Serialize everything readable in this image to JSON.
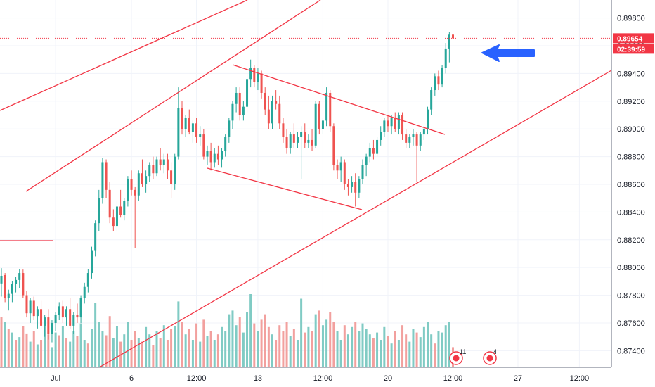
{
  "chart_data": {
    "type": "candlestick",
    "y_axis": {
      "side": "right",
      "ylim": [
        0.8728,
        0.8993
      ],
      "ticks": [
        "0.89800",
        "0.89600",
        "0.89400",
        "0.89200",
        "0.89000",
        "0.88800",
        "0.88600",
        "0.88400",
        "0.88200",
        "0.88000",
        "0.87800",
        "0.87600",
        "0.87400"
      ]
    },
    "x_axis": {
      "tick_labels": [
        "Jul",
        "6",
        "12:00",
        "13",
        "12:00",
        "20",
        "12:00",
        "27",
        "12:00"
      ]
    },
    "last_price": {
      "label": "0.89654",
      "countdown": "02:39:59",
      "value": 0.89654,
      "color": "#f23645"
    },
    "colors": {
      "up": "#26a69a",
      "down": "#ef5350",
      "vol_up": "#80cbc4",
      "vol_down": "#f2a09e",
      "trendline": "#f23645",
      "arrow": "#2962ff"
    },
    "candles": [
      [
        0.87885,
        0.87995,
        0.8779,
        0.8794
      ],
      [
        0.87945,
        0.8796,
        0.8775,
        0.8778
      ],
      [
        0.8778,
        0.8784,
        0.8769,
        0.8781
      ],
      [
        0.8781,
        0.879,
        0.8775,
        0.8788
      ],
      [
        0.8788,
        0.8793,
        0.8782,
        0.8791
      ],
      [
        0.8791,
        0.8799,
        0.8785,
        0.8796
      ],
      [
        0.8796,
        0.87985,
        0.8778,
        0.878
      ],
      [
        0.878,
        0.8783,
        0.8764,
        0.8767
      ],
      [
        0.8767,
        0.8778,
        0.876,
        0.8776
      ],
      [
        0.8776,
        0.8779,
        0.8762,
        0.8765
      ],
      [
        0.8765,
        0.8772,
        0.8756,
        0.877
      ],
      [
        0.877,
        0.8776,
        0.8756,
        0.8758
      ],
      [
        0.8758,
        0.8766,
        0.875,
        0.8764
      ],
      [
        0.8764,
        0.877,
        0.8748,
        0.8752
      ],
      [
        0.8752,
        0.8762,
        0.8746,
        0.876
      ],
      [
        0.876,
        0.8768,
        0.8754,
        0.8766
      ],
      [
        0.8766,
        0.8775,
        0.8762,
        0.8772
      ],
      [
        0.8772,
        0.8776,
        0.876,
        0.8764
      ],
      [
        0.8764,
        0.8772,
        0.8758,
        0.877
      ],
      [
        0.877,
        0.8778,
        0.8756,
        0.8758
      ],
      [
        0.8758,
        0.8768,
        0.8752,
        0.8766
      ],
      [
        0.8766,
        0.8774,
        0.876,
        0.8764
      ],
      [
        0.8764,
        0.878,
        0.876,
        0.8778
      ],
      [
        0.8778,
        0.8789,
        0.8774,
        0.8786
      ],
      [
        0.8786,
        0.8799,
        0.8782,
        0.8796
      ],
      [
        0.8796,
        0.8815,
        0.8792,
        0.8812
      ],
      [
        0.8812,
        0.8834,
        0.8808,
        0.8832
      ],
      [
        0.8832,
        0.8856,
        0.8826,
        0.885
      ],
      [
        0.885,
        0.8879,
        0.8846,
        0.8876
      ],
      [
        0.8876,
        0.8878,
        0.885,
        0.8856
      ],
      [
        0.8856,
        0.8862,
        0.8832,
        0.8836
      ],
      [
        0.8836,
        0.8842,
        0.8826,
        0.883
      ],
      [
        0.883,
        0.8848,
        0.8826,
        0.8844
      ],
      [
        0.8844,
        0.8856,
        0.8836,
        0.8838
      ],
      [
        0.8838,
        0.885,
        0.8834,
        0.8848
      ],
      [
        0.8848,
        0.8866,
        0.8844,
        0.8864
      ],
      [
        0.8864,
        0.887,
        0.8852,
        0.8856
      ],
      [
        0.8856,
        0.8858,
        0.8814,
        0.8852
      ],
      [
        0.8852,
        0.887,
        0.8848,
        0.8868
      ],
      [
        0.8868,
        0.8878,
        0.8858,
        0.886
      ],
      [
        0.886,
        0.887,
        0.8854,
        0.8866
      ],
      [
        0.8866,
        0.8876,
        0.8862,
        0.8874
      ],
      [
        0.8874,
        0.888,
        0.8864,
        0.8868
      ],
      [
        0.8868,
        0.888,
        0.8866,
        0.8878
      ],
      [
        0.8878,
        0.8886,
        0.887,
        0.8874
      ],
      [
        0.8874,
        0.8882,
        0.8868,
        0.8878
      ],
      [
        0.8878,
        0.8882,
        0.8864,
        0.887
      ],
      [
        0.887,
        0.8876,
        0.885,
        0.886
      ],
      [
        0.886,
        0.8882,
        0.8856,
        0.888
      ],
      [
        0.888,
        0.893,
        0.8878,
        0.8915
      ],
      [
        0.8915,
        0.892,
        0.8896,
        0.89
      ],
      [
        0.89,
        0.891,
        0.8894,
        0.8908
      ],
      [
        0.8908,
        0.8914,
        0.8896,
        0.8898
      ],
      [
        0.8898,
        0.8906,
        0.889,
        0.8904
      ],
      [
        0.8904,
        0.8908,
        0.889,
        0.8894
      ],
      [
        0.8894,
        0.8902,
        0.8888,
        0.8896
      ],
      [
        0.8896,
        0.89,
        0.8878,
        0.888
      ],
      [
        0.888,
        0.8888,
        0.8874,
        0.8884
      ],
      [
        0.8884,
        0.889,
        0.887,
        0.8876
      ],
      [
        0.8876,
        0.8886,
        0.8872,
        0.8882
      ],
      [
        0.8882,
        0.8888,
        0.8874,
        0.8878
      ],
      [
        0.8878,
        0.8886,
        0.8872,
        0.8884
      ],
      [
        0.8884,
        0.8896,
        0.888,
        0.8894
      ],
      [
        0.8894,
        0.8908,
        0.889,
        0.8906
      ],
      [
        0.8906,
        0.892,
        0.89,
        0.8918
      ],
      [
        0.8918,
        0.893,
        0.8912,
        0.8926
      ],
      [
        0.8926,
        0.893,
        0.8906,
        0.891
      ],
      [
        0.891,
        0.892,
        0.8906,
        0.8916
      ],
      [
        0.8916,
        0.894,
        0.8912,
        0.8936
      ],
      [
        0.8936,
        0.895,
        0.893,
        0.8944
      ],
      [
        0.8944,
        0.8946,
        0.893,
        0.8934
      ],
      [
        0.8934,
        0.8944,
        0.8928,
        0.894
      ],
      [
        0.894,
        0.8942,
        0.8922,
        0.8926
      ],
      [
        0.8926,
        0.893,
        0.891,
        0.8914
      ],
      [
        0.8914,
        0.8924,
        0.89,
        0.8904
      ],
      [
        0.8904,
        0.8924,
        0.89,
        0.892
      ],
      [
        0.892,
        0.8928,
        0.8914,
        0.8918
      ],
      [
        0.8918,
        0.8924,
        0.89,
        0.8904
      ],
      [
        0.8904,
        0.8908,
        0.889,
        0.8894
      ],
      [
        0.8894,
        0.89,
        0.8882,
        0.8886
      ],
      [
        0.8886,
        0.8898,
        0.8882,
        0.8896
      ],
      [
        0.8896,
        0.8904,
        0.8886,
        0.889
      ],
      [
        0.889,
        0.8898,
        0.8886,
        0.8894
      ],
      [
        0.8894,
        0.8902,
        0.8864,
        0.8898
      ],
      [
        0.8898,
        0.8904,
        0.8886,
        0.889
      ],
      [
        0.889,
        0.8896,
        0.8886,
        0.8892
      ],
      [
        0.8892,
        0.89,
        0.8884,
        0.8888
      ],
      [
        0.8888,
        0.892,
        0.8886,
        0.8918
      ],
      [
        0.8918,
        0.892,
        0.8896,
        0.89
      ],
      [
        0.89,
        0.8908,
        0.8896,
        0.8906
      ],
      [
        0.8906,
        0.893,
        0.8902,
        0.8926
      ],
      [
        0.8926,
        0.8928,
        0.8898,
        0.8902
      ],
      [
        0.8902,
        0.8904,
        0.887,
        0.8874
      ],
      [
        0.8874,
        0.8878,
        0.8864,
        0.887
      ],
      [
        0.887,
        0.888,
        0.8862,
        0.8876
      ],
      [
        0.8876,
        0.8878,
        0.8856,
        0.886
      ],
      [
        0.886,
        0.8864,
        0.8852,
        0.8858
      ],
      [
        0.8858,
        0.8866,
        0.8854,
        0.8862
      ],
      [
        0.8862,
        0.8868,
        0.8844,
        0.8854
      ],
      [
        0.8854,
        0.8866,
        0.885,
        0.8864
      ],
      [
        0.8864,
        0.8878,
        0.886,
        0.8874
      ],
      [
        0.8874,
        0.8882,
        0.8866,
        0.888
      ],
      [
        0.888,
        0.889,
        0.8876,
        0.8886
      ],
      [
        0.8886,
        0.8892,
        0.8878,
        0.8882
      ],
      [
        0.8882,
        0.8894,
        0.888,
        0.8892
      ],
      [
        0.8892,
        0.8902,
        0.8888,
        0.8898
      ],
      [
        0.8898,
        0.8908,
        0.8894,
        0.8906
      ],
      [
        0.8906,
        0.891,
        0.8898,
        0.8902
      ],
      [
        0.8902,
        0.891,
        0.8896,
        0.8908
      ],
      [
        0.8908,
        0.8912,
        0.8898,
        0.89
      ],
      [
        0.89,
        0.8912,
        0.8896,
        0.891
      ],
      [
        0.891,
        0.8912,
        0.8892,
        0.8896
      ],
      [
        0.8896,
        0.89,
        0.8886,
        0.889
      ],
      [
        0.889,
        0.8896,
        0.8886,
        0.8894
      ],
      [
        0.8894,
        0.89,
        0.8888,
        0.8896
      ],
      [
        0.8896,
        0.8898,
        0.8862,
        0.8888
      ],
      [
        0.8888,
        0.8898,
        0.8884,
        0.8896
      ],
      [
        0.8896,
        0.8902,
        0.8892,
        0.89
      ],
      [
        0.89,
        0.8916,
        0.8896,
        0.8914
      ],
      [
        0.8914,
        0.893,
        0.891,
        0.8928
      ],
      [
        0.8928,
        0.894,
        0.8924,
        0.8938
      ],
      [
        0.8938,
        0.8942,
        0.8928,
        0.8932
      ],
      [
        0.8932,
        0.8946,
        0.893,
        0.8944
      ],
      [
        0.8944,
        0.8962,
        0.894,
        0.8958
      ],
      [
        0.8958,
        0.897,
        0.8948,
        0.8968
      ],
      [
        0.8968,
        0.8971,
        0.896,
        0.89654
      ]
    ],
    "volumes": [
      [
        0.55,
        0
      ],
      [
        0.5,
        1
      ],
      [
        0.42,
        0
      ],
      [
        0.38,
        1
      ],
      [
        0.3,
        0
      ],
      [
        0.33,
        1
      ],
      [
        0.45,
        0
      ],
      [
        0.37,
        0
      ],
      [
        0.28,
        1
      ],
      [
        0.4,
        0
      ],
      [
        0.25,
        1
      ],
      [
        0.3,
        0
      ],
      [
        0.46,
        1
      ],
      [
        0.36,
        0
      ],
      [
        0.22,
        1
      ],
      [
        0.38,
        1
      ],
      [
        0.35,
        0
      ],
      [
        0.45,
        1
      ],
      [
        0.32,
        0
      ],
      [
        0.28,
        1
      ],
      [
        0.4,
        1
      ],
      [
        0.34,
        0
      ],
      [
        0.48,
        1
      ],
      [
        0.3,
        1
      ],
      [
        0.26,
        0
      ],
      [
        0.42,
        1
      ],
      [
        0.7,
        1
      ],
      [
        0.5,
        1
      ],
      [
        0.4,
        1
      ],
      [
        0.35,
        0
      ],
      [
        0.56,
        0
      ],
      [
        0.32,
        1
      ],
      [
        0.45,
        1
      ],
      [
        0.28,
        0
      ],
      [
        0.36,
        1
      ],
      [
        0.5,
        1
      ],
      [
        0.3,
        0
      ],
      [
        0.4,
        0
      ],
      [
        0.32,
        1
      ],
      [
        0.28,
        0
      ],
      [
        0.44,
        1
      ],
      [
        0.36,
        1
      ],
      [
        0.24,
        0
      ],
      [
        0.4,
        1
      ],
      [
        0.32,
        0
      ],
      [
        0.46,
        1
      ],
      [
        0.3,
        0
      ],
      [
        0.42,
        0
      ],
      [
        0.45,
        1
      ],
      [
        0.72,
        1
      ],
      [
        0.5,
        0
      ],
      [
        0.36,
        1
      ],
      [
        0.42,
        0
      ],
      [
        0.3,
        1
      ],
      [
        0.48,
        0
      ],
      [
        0.28,
        1
      ],
      [
        0.52,
        0
      ],
      [
        0.34,
        1
      ],
      [
        0.4,
        0
      ],
      [
        0.3,
        1
      ],
      [
        0.36,
        0
      ],
      [
        0.44,
        1
      ],
      [
        0.4,
        1
      ],
      [
        0.58,
        1
      ],
      [
        0.62,
        1
      ],
      [
        0.46,
        1
      ],
      [
        0.55,
        0
      ],
      [
        0.38,
        1
      ],
      [
        0.6,
        1
      ],
      [
        0.8,
        1
      ],
      [
        0.48,
        0
      ],
      [
        0.4,
        1
      ],
      [
        0.52,
        0
      ],
      [
        0.58,
        0
      ],
      [
        0.44,
        0
      ],
      [
        0.36,
        1
      ],
      [
        0.3,
        0
      ],
      [
        0.46,
        0
      ],
      [
        0.4,
        0
      ],
      [
        0.5,
        0
      ],
      [
        0.34,
        1
      ],
      [
        0.42,
        0
      ],
      [
        0.3,
        1
      ],
      [
        0.75,
        1
      ],
      [
        0.38,
        0
      ],
      [
        0.44,
        1
      ],
      [
        0.4,
        0
      ],
      [
        0.58,
        1
      ],
      [
        0.62,
        0
      ],
      [
        0.46,
        1
      ],
      [
        0.52,
        1
      ],
      [
        0.6,
        0
      ],
      [
        0.5,
        0
      ],
      [
        0.4,
        1
      ],
      [
        0.3,
        1
      ],
      [
        0.46,
        0
      ],
      [
        0.36,
        1
      ],
      [
        0.44,
        1
      ],
      [
        0.5,
        0
      ],
      [
        0.4,
        1
      ],
      [
        0.48,
        1
      ],
      [
        0.42,
        1
      ],
      [
        0.36,
        1
      ],
      [
        0.32,
        0
      ],
      [
        0.38,
        1
      ],
      [
        0.3,
        1
      ],
      [
        0.44,
        1
      ],
      [
        0.34,
        0
      ],
      [
        0.26,
        1
      ],
      [
        0.4,
        0
      ],
      [
        0.3,
        1
      ],
      [
        0.46,
        0
      ],
      [
        0.36,
        0
      ],
      [
        0.28,
        1
      ],
      [
        0.42,
        1
      ],
      [
        0.38,
        0
      ],
      [
        0.33,
        1
      ],
      [
        0.44,
        1
      ],
      [
        0.5,
        1
      ],
      [
        0.36,
        1
      ],
      [
        0.26,
        0
      ],
      [
        0.4,
        1
      ],
      [
        0.38,
        1
      ],
      [
        0.46,
        1
      ],
      [
        0.5,
        1
      ],
      [
        0.22,
        0
      ]
    ],
    "events": [
      {
        "label": "11"
      },
      {
        "label": "4"
      }
    ]
  }
}
